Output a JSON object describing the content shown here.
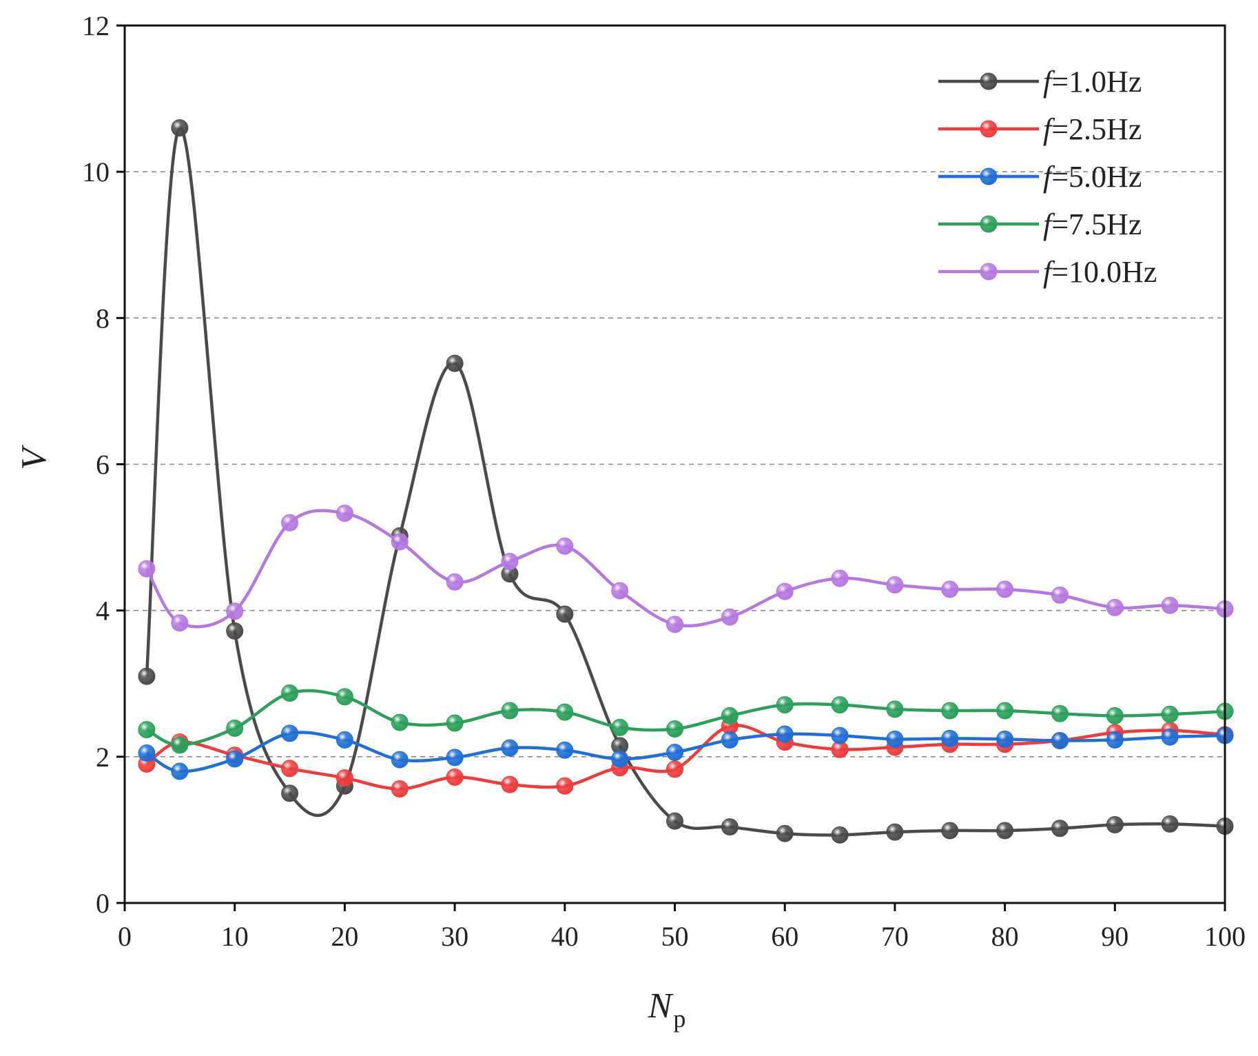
{
  "chart_data": {
    "type": "line",
    "title": "",
    "xlabel": "N",
    "xlabel_sub": "p",
    "ylabel": "V",
    "xlim": [
      0,
      100
    ],
    "ylim": [
      0,
      12
    ],
    "x_ticks": [
      0,
      10,
      20,
      30,
      40,
      50,
      60,
      70,
      80,
      90,
      100
    ],
    "y_ticks": [
      0,
      2,
      4,
      6,
      8,
      10,
      12
    ],
    "grid": "horizontal dashed",
    "legend_position": "top-right",
    "x": [
      2,
      5,
      10,
      15,
      20,
      25,
      30,
      35,
      40,
      45,
      50,
      55,
      60,
      65,
      70,
      75,
      80,
      85,
      90,
      95,
      100
    ],
    "series": [
      {
        "name": "f=1.0Hz",
        "legend_italic": "f",
        "legend_rest": "=1.0Hz",
        "color": "#4a4a4a",
        "values": [
          3.1,
          10.6,
          3.72,
          1.5,
          1.6,
          5.02,
          7.38,
          4.5,
          3.95,
          2.15,
          1.12,
          1.04,
          0.95,
          0.93,
          0.97,
          0.99,
          0.99,
          1.02,
          1.07,
          1.08,
          1.05
        ]
      },
      {
        "name": "f=2.5Hz",
        "legend_italic": "f",
        "legend_rest": "=2.5Hz",
        "color": "#ee3b3b",
        "values": [
          1.9,
          2.2,
          2.02,
          1.84,
          1.71,
          1.56,
          1.72,
          1.62,
          1.6,
          1.85,
          1.83,
          2.42,
          2.2,
          2.1,
          2.13,
          2.17,
          2.17,
          2.22,
          2.33,
          2.36,
          2.3
        ]
      },
      {
        "name": "f=5.0Hz",
        "legend_italic": "f",
        "legend_rest": "=5.0Hz",
        "color": "#1f6fd6",
        "values": [
          2.05,
          1.8,
          1.97,
          2.32,
          2.23,
          1.96,
          1.99,
          2.12,
          2.09,
          1.97,
          2.06,
          2.23,
          2.31,
          2.29,
          2.24,
          2.25,
          2.24,
          2.22,
          2.23,
          2.27,
          2.29
        ]
      },
      {
        "name": "f=7.5Hz",
        "legend_italic": "f",
        "legend_rest": "=7.5Hz",
        "color": "#2aa05a",
        "values": [
          2.37,
          2.16,
          2.39,
          2.87,
          2.82,
          2.47,
          2.46,
          2.63,
          2.61,
          2.4,
          2.38,
          2.56,
          2.71,
          2.71,
          2.65,
          2.63,
          2.63,
          2.59,
          2.56,
          2.58,
          2.62
        ]
      },
      {
        "name": "f=10.0Hz",
        "legend_italic": "f",
        "legend_rest": "=10.0Hz",
        "color": "#b678e0",
        "values": [
          4.57,
          3.83,
          3.99,
          5.2,
          5.33,
          4.94,
          4.39,
          4.67,
          4.88,
          4.27,
          3.81,
          3.91,
          4.26,
          4.44,
          4.35,
          4.29,
          4.29,
          4.21,
          4.04,
          4.07,
          4.02
        ]
      }
    ]
  }
}
